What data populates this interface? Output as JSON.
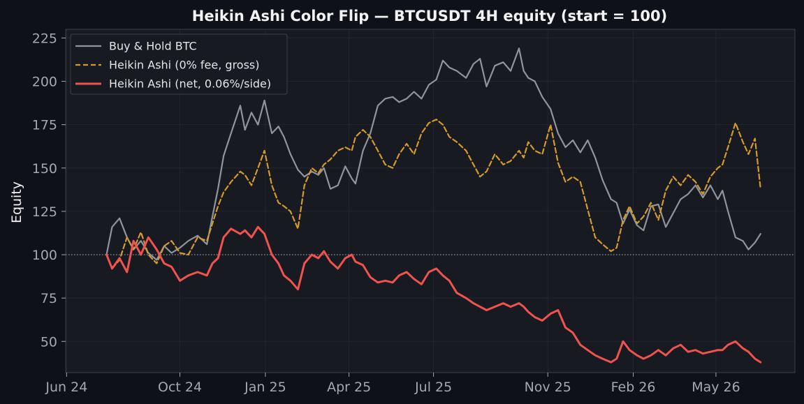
{
  "chart_data": {
    "type": "line",
    "title": "Heikin Ashi Color Flip — BTCUSDT 4H equity (start = 100)",
    "xlabel": "",
    "ylabel": "Equity",
    "ylim": [
      32,
      230
    ],
    "xlim": [
      "2024-05-31",
      "2026-07-25"
    ],
    "y_ticks": [
      50,
      75,
      100,
      125,
      150,
      175,
      200,
      225
    ],
    "y_tick_labels": [
      "50",
      "75",
      "100",
      "125",
      "150",
      "175",
      "200",
      "225"
    ],
    "x_ticks": [
      "2024-06-01",
      "2024-10-01",
      "2025-01-01",
      "2025-04-01",
      "2025-07-01",
      "2025-11-01",
      "2026-02-01",
      "2026-05-01"
    ],
    "x_tick_labels": [
      "Jun 24",
      "Oct 24",
      "Jan 25",
      "Apr 25",
      "Jul 25",
      "Nov 25",
      "Feb 26",
      "May 26"
    ],
    "reference_line": {
      "y": 100,
      "style": "dotted",
      "color": "#8a8f99"
    },
    "grid": true,
    "legend_position": "top-left",
    "colors": {
      "background": "#0e1117",
      "plot_background": "#171a21",
      "grid": "#222630",
      "frame": "#3a3f4a"
    },
    "series": [
      {
        "name": "Buy & Hold BTC",
        "color": "#8f949e",
        "style": "solid",
        "x": [
          "2024-07-14",
          "2024-07-20",
          "2024-07-28",
          "2024-08-05",
          "2024-08-12",
          "2024-08-20",
          "2024-08-28",
          "2024-09-06",
          "2024-09-14",
          "2024-09-22",
          "2024-10-01",
          "2024-10-10",
          "2024-10-20",
          "2024-10-30",
          "2024-11-05",
          "2024-11-11",
          "2024-11-17",
          "2024-11-25",
          "2024-12-05",
          "2024-12-10",
          "2024-12-17",
          "2024-12-24",
          "2024-12-31",
          "2025-01-08",
          "2025-01-15",
          "2025-01-21",
          "2025-01-28",
          "2025-02-05",
          "2025-02-12",
          "2025-02-20",
          "2025-02-27",
          "2025-03-05",
          "2025-03-12",
          "2025-03-20",
          "2025-03-28",
          "2025-04-04",
          "2025-04-08",
          "2025-04-16",
          "2025-04-24",
          "2025-05-02",
          "2025-05-10",
          "2025-05-18",
          "2025-05-25",
          "2025-06-02",
          "2025-06-10",
          "2025-06-18",
          "2025-06-26",
          "2025-07-04",
          "2025-07-11",
          "2025-07-18",
          "2025-07-26",
          "2025-08-05",
          "2025-08-13",
          "2025-08-20",
          "2025-08-27",
          "2025-09-05",
          "2025-09-14",
          "2025-09-22",
          "2025-10-01",
          "2025-10-06",
          "2025-10-11",
          "2025-10-18",
          "2025-10-26",
          "2025-11-04",
          "2025-11-12",
          "2025-11-20",
          "2025-11-28",
          "2025-12-06",
          "2025-12-14",
          "2025-12-22",
          "2025-12-30",
          "2026-01-08",
          "2026-01-14",
          "2026-01-21",
          "2026-01-28",
          "2026-02-05",
          "2026-02-12",
          "2026-02-20",
          "2026-02-28",
          "2026-03-08",
          "2026-03-16",
          "2026-03-24",
          "2026-04-01",
          "2026-04-09",
          "2026-04-17",
          "2026-04-25",
          "2026-05-03",
          "2026-05-08",
          "2026-05-14",
          "2026-05-22",
          "2026-05-30",
          "2026-06-05",
          "2026-06-12",
          "2026-06-18"
        ],
        "y": [
          100,
          116,
          121,
          110,
          103,
          108,
          101,
          97,
          105,
          101,
          104,
          108,
          111,
          106,
          122,
          138,
          157,
          170,
          186,
          172,
          182,
          175,
          189,
          170,
          174,
          168,
          158,
          149,
          145,
          148,
          146,
          150,
          138,
          140,
          151,
          144,
          141,
          160,
          170,
          186,
          190,
          191,
          188,
          190,
          194,
          190,
          198,
          201,
          212,
          208,
          206,
          202,
          210,
          213,
          197,
          209,
          211,
          206,
          219,
          206,
          202,
          200,
          191,
          184,
          170,
          162,
          166,
          159,
          166,
          156,
          143,
          132,
          130,
          118,
          126,
          117,
          114,
          128,
          129,
          116,
          124,
          132,
          135,
          140,
          133,
          140,
          132,
          137,
          125,
          110,
          108,
          103,
          107,
          112
        ]
      },
      {
        "name": "Heikin Ashi (0% fee, gross)",
        "color": "#d59a2c",
        "style": "dashed",
        "x": [
          "2024-07-14",
          "2024-07-20",
          "2024-07-28",
          "2024-08-05",
          "2024-08-12",
          "2024-08-20",
          "2024-08-28",
          "2024-09-06",
          "2024-09-14",
          "2024-09-22",
          "2024-10-01",
          "2024-10-10",
          "2024-10-20",
          "2024-10-30",
          "2024-11-05",
          "2024-11-11",
          "2024-11-17",
          "2024-11-25",
          "2024-12-05",
          "2024-12-10",
          "2024-12-17",
          "2024-12-24",
          "2024-12-31",
          "2025-01-08",
          "2025-01-15",
          "2025-01-21",
          "2025-01-28",
          "2025-02-05",
          "2025-02-12",
          "2025-02-20",
          "2025-02-27",
          "2025-03-05",
          "2025-03-12",
          "2025-03-20",
          "2025-03-28",
          "2025-04-04",
          "2025-04-08",
          "2025-04-16",
          "2025-04-24",
          "2025-05-02",
          "2025-05-10",
          "2025-05-18",
          "2025-05-25",
          "2025-06-02",
          "2025-06-10",
          "2025-06-18",
          "2025-06-26",
          "2025-07-04",
          "2025-07-11",
          "2025-07-18",
          "2025-07-26",
          "2025-08-05",
          "2025-08-13",
          "2025-08-20",
          "2025-08-27",
          "2025-09-05",
          "2025-09-14",
          "2025-09-22",
          "2025-10-01",
          "2025-10-06",
          "2025-10-11",
          "2025-10-18",
          "2025-10-26",
          "2025-11-04",
          "2025-11-12",
          "2025-11-20",
          "2025-11-28",
          "2025-12-06",
          "2025-12-14",
          "2025-12-22",
          "2025-12-30",
          "2026-01-08",
          "2026-01-14",
          "2026-01-21",
          "2026-01-28",
          "2026-02-05",
          "2026-02-12",
          "2026-02-20",
          "2026-02-28",
          "2026-03-08",
          "2026-03-16",
          "2026-03-24",
          "2026-04-01",
          "2026-04-09",
          "2026-04-17",
          "2026-04-25",
          "2026-05-03",
          "2026-05-08",
          "2026-05-14",
          "2026-05-22",
          "2026-05-30",
          "2026-06-05",
          "2026-06-12",
          "2026-06-18"
        ],
        "y": [
          100,
          92,
          97,
          110,
          103,
          113,
          100,
          95,
          105,
          108,
          101,
          100,
          110,
          108,
          118,
          128,
          136,
          142,
          148,
          146,
          140,
          150,
          160,
          140,
          130,
          128,
          125,
          115,
          140,
          150,
          147,
          152,
          155,
          160,
          162,
          160,
          168,
          172,
          168,
          160,
          152,
          150,
          158,
          164,
          158,
          170,
          176,
          178,
          175,
          168,
          165,
          160,
          152,
          145,
          148,
          158,
          152,
          154,
          160,
          156,
          165,
          160,
          158,
          175,
          153,
          142,
          145,
          142,
          126,
          110,
          106,
          102,
          104,
          120,
          128,
          118,
          122,
          130,
          120,
          137,
          145,
          140,
          146,
          142,
          135,
          145,
          150,
          152,
          162,
          176,
          165,
          158,
          167,
          138
        ]
      },
      {
        "name": "Heikin Ashi (net, 0.06%/side)",
        "color": "#f0534d",
        "style": "solid",
        "x": [
          "2024-07-14",
          "2024-07-20",
          "2024-07-28",
          "2024-08-05",
          "2024-08-12",
          "2024-08-20",
          "2024-08-28",
          "2024-09-06",
          "2024-09-14",
          "2024-09-22",
          "2024-10-01",
          "2024-10-10",
          "2024-10-20",
          "2024-10-30",
          "2024-11-05",
          "2024-11-11",
          "2024-11-17",
          "2024-11-25",
          "2024-12-05",
          "2024-12-10",
          "2024-12-17",
          "2024-12-24",
          "2024-12-31",
          "2025-01-08",
          "2025-01-15",
          "2025-01-21",
          "2025-01-28",
          "2025-02-05",
          "2025-02-12",
          "2025-02-20",
          "2025-02-27",
          "2025-03-05",
          "2025-03-12",
          "2025-03-20",
          "2025-03-28",
          "2025-04-04",
          "2025-04-08",
          "2025-04-16",
          "2025-04-24",
          "2025-05-02",
          "2025-05-10",
          "2025-05-18",
          "2025-05-25",
          "2025-06-02",
          "2025-06-10",
          "2025-06-18",
          "2025-06-26",
          "2025-07-04",
          "2025-07-11",
          "2025-07-18",
          "2025-07-26",
          "2025-08-05",
          "2025-08-13",
          "2025-08-20",
          "2025-08-27",
          "2025-09-05",
          "2025-09-14",
          "2025-09-22",
          "2025-10-01",
          "2025-10-06",
          "2025-10-11",
          "2025-10-18",
          "2025-10-26",
          "2025-11-04",
          "2025-11-12",
          "2025-11-20",
          "2025-11-28",
          "2025-12-06",
          "2025-12-14",
          "2025-12-22",
          "2025-12-30",
          "2026-01-08",
          "2026-01-14",
          "2026-01-21",
          "2026-01-28",
          "2026-02-05",
          "2026-02-12",
          "2026-02-20",
          "2026-02-28",
          "2026-03-08",
          "2026-03-16",
          "2026-03-24",
          "2026-04-01",
          "2026-04-09",
          "2026-04-17",
          "2026-04-25",
          "2026-05-03",
          "2026-05-08",
          "2026-05-14",
          "2026-05-22",
          "2026-05-30",
          "2026-06-05",
          "2026-06-12",
          "2026-06-18"
        ],
        "y": [
          100,
          92,
          98,
          90,
          108,
          100,
          110,
          103,
          95,
          93,
          85,
          88,
          90,
          88,
          95,
          98,
          110,
          115,
          112,
          114,
          110,
          116,
          112,
          100,
          95,
          88,
          85,
          80,
          95,
          100,
          98,
          102,
          96,
          92,
          98,
          100,
          96,
          94,
          87,
          84,
          85,
          84,
          88,
          90,
          86,
          83,
          90,
          92,
          88,
          85,
          78,
          75,
          72,
          70,
          68,
          70,
          72,
          70,
          72,
          70,
          67,
          64,
          62,
          66,
          68,
          58,
          55,
          48,
          45,
          42,
          40,
          38,
          40,
          50,
          45,
          42,
          40,
          42,
          45,
          42,
          46,
          48,
          44,
          45,
          43,
          44,
          45,
          45,
          48,
          50,
          46,
          44,
          40,
          38
        ]
      }
    ]
  }
}
